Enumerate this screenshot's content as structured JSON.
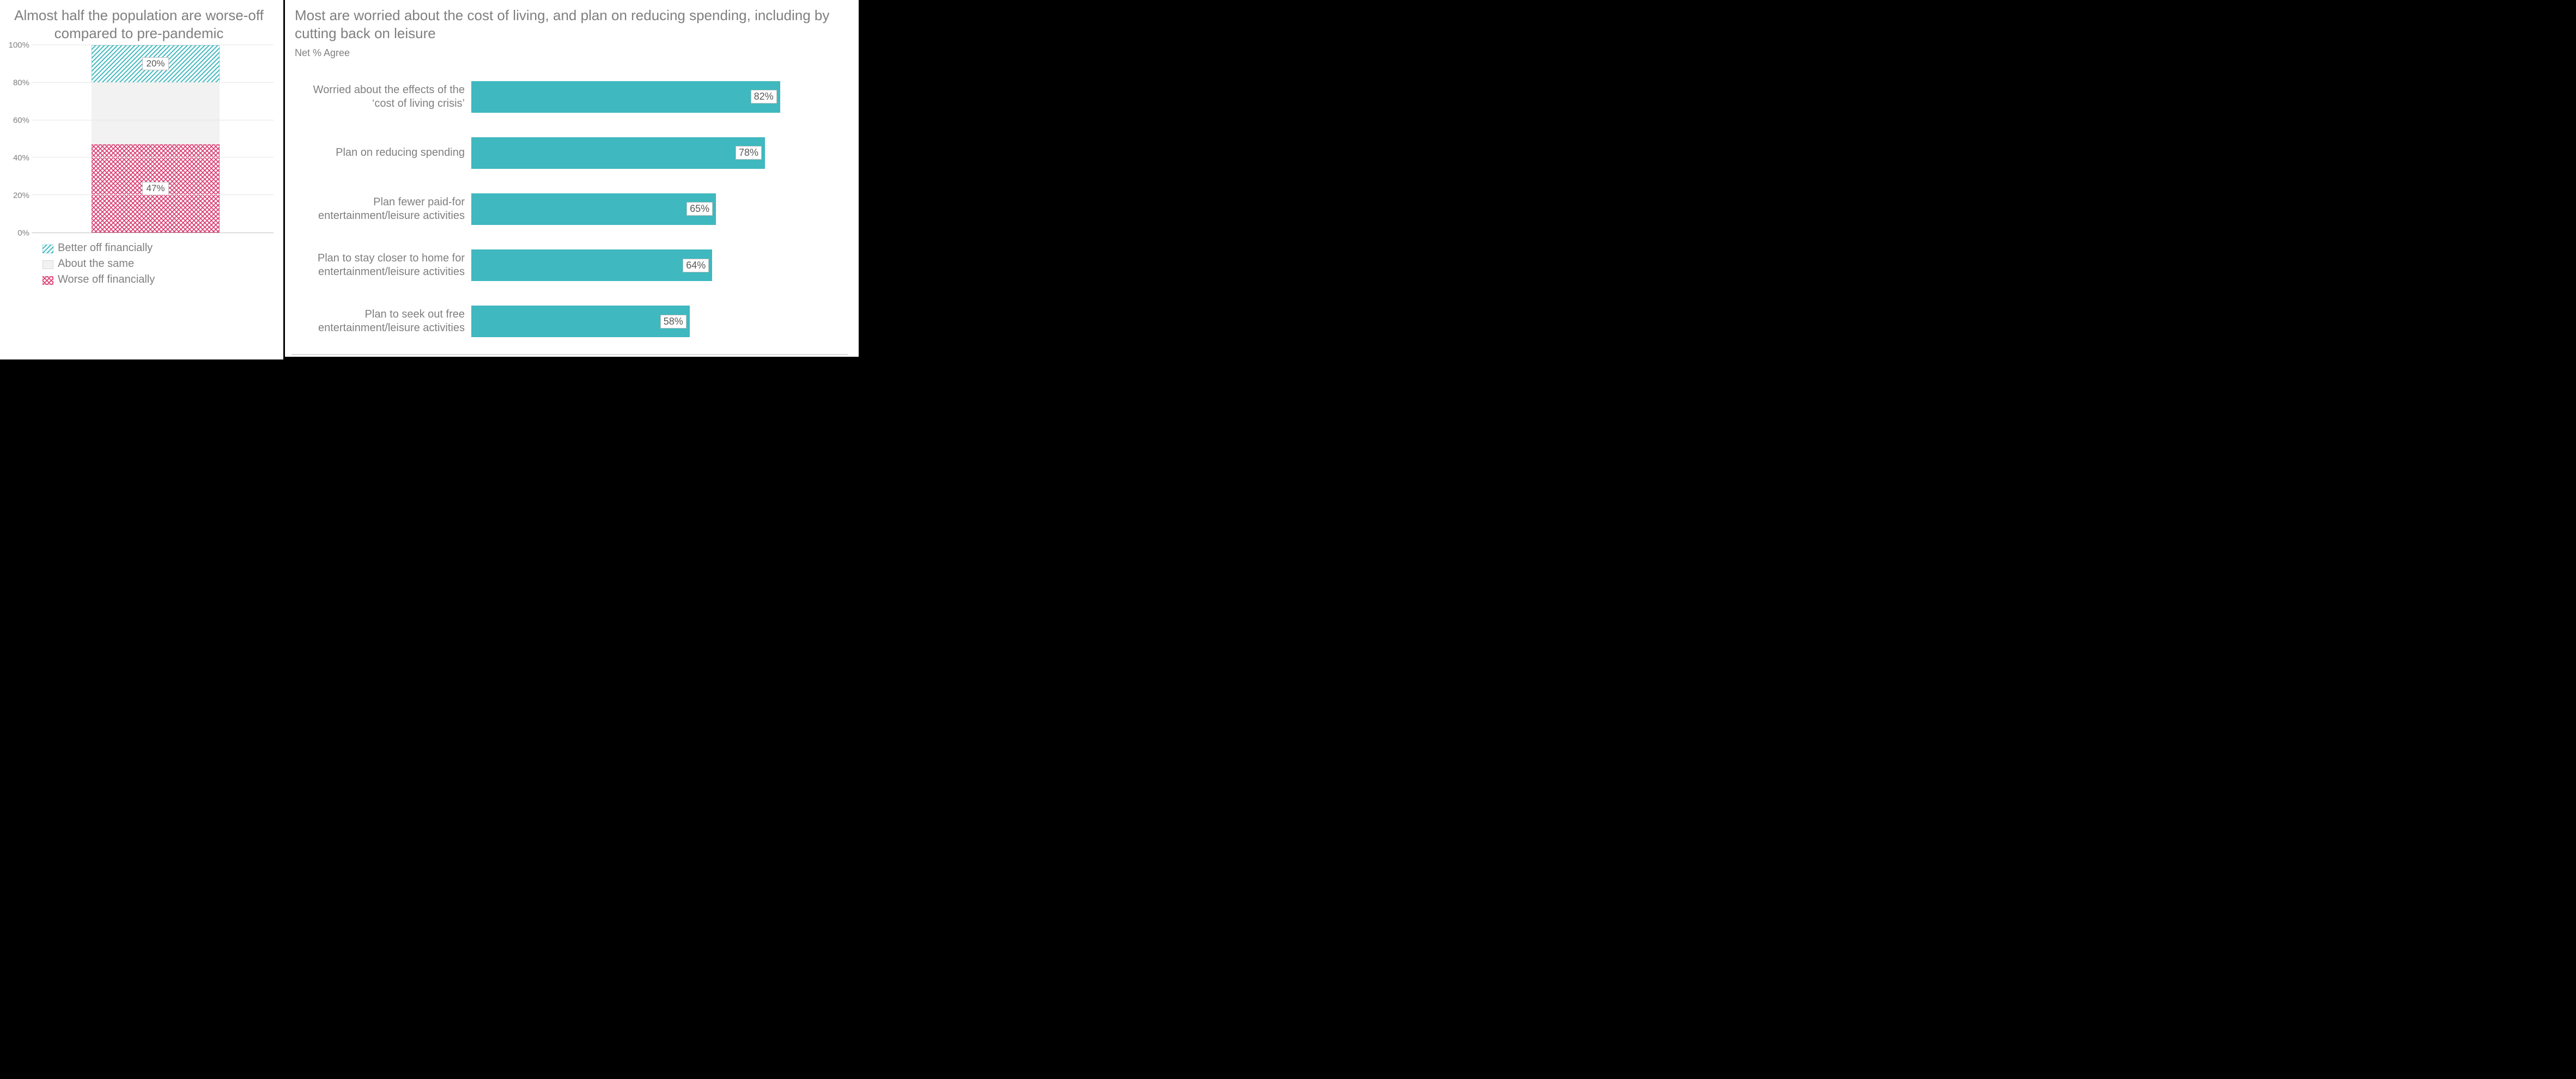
{
  "left_chart": {
    "type": "stacked-bar-100",
    "title": "Almost half the population are worse-off compared to pre-pandemic",
    "ylim": [
      0,
      100
    ],
    "ytick_step": 20,
    "ytick_labels": [
      "0%",
      "20%",
      "40%",
      "60%",
      "80%",
      "100%"
    ],
    "background_color": "#ffffff",
    "grid_color": "#e6e6e6",
    "text_color": "#7f7f7f",
    "segments": [
      {
        "key": "worse",
        "label": "Worse off financially",
        "value": 47,
        "value_label": "47%",
        "fill": "#d9376e",
        "pattern": "crosshatch",
        "show_label": true
      },
      {
        "key": "same",
        "label": "About the same",
        "value": 33,
        "value_label": "",
        "fill": "#f2f2f2",
        "pattern": "none",
        "show_label": false
      },
      {
        "key": "better",
        "label": "Better off financially",
        "value": 20,
        "value_label": "20%",
        "fill": "#3fb8bf",
        "pattern": "diagonal",
        "show_label": true
      }
    ],
    "legend_order": [
      "better",
      "same",
      "worse"
    ]
  },
  "right_chart": {
    "type": "bar-horizontal",
    "title": "Most are worried about the cost of living, and plan on reducing spending, including by cutting back on leisure",
    "subtitle": "Net % Agree",
    "xlim": [
      0,
      100
    ],
    "bar_color": "#3fb8bf",
    "background_color": "#ffffff",
    "text_color": "#7f7f7f",
    "items": [
      {
        "label": "Worried about the effects of the ‘cost of living crisis’",
        "value": 82,
        "value_label": "82%"
      },
      {
        "label": "Plan on reducing spending",
        "value": 78,
        "value_label": "78%"
      },
      {
        "label": "Plan fewer paid-for entertainment/leisure activities",
        "value": 65,
        "value_label": "65%"
      },
      {
        "label": "Plan to stay closer to home for entertainment/leisure activities",
        "value": 64,
        "value_label": "64%"
      },
      {
        "label": "Plan to seek out free entertainment/leisure activities",
        "value": 58,
        "value_label": "58%"
      }
    ]
  }
}
